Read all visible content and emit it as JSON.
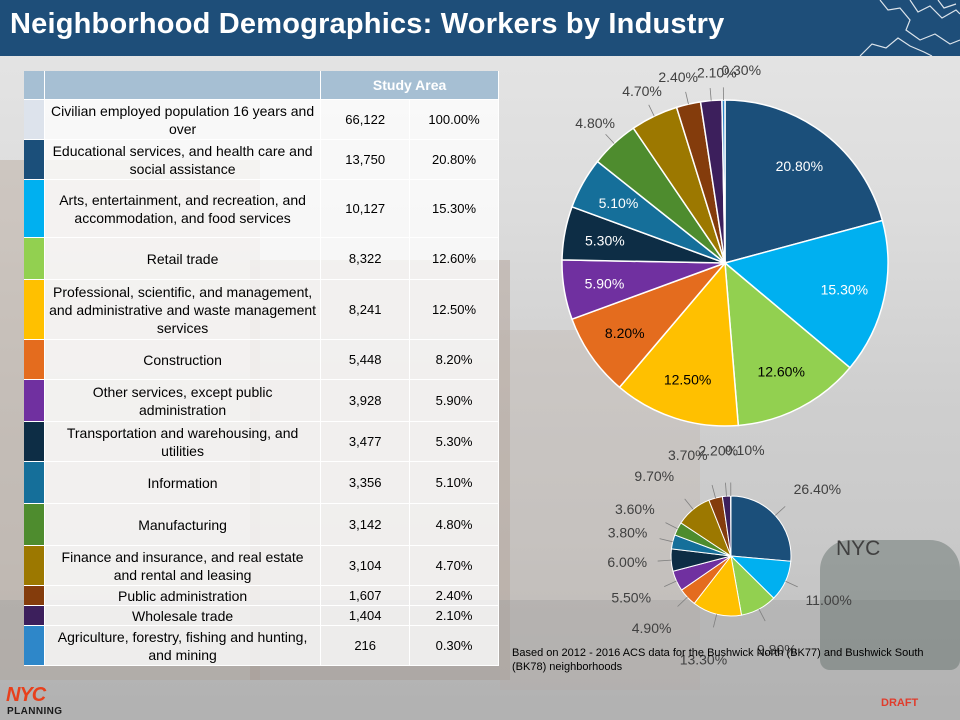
{
  "header": {
    "title": "Neighborhood Demographics:  Workers by Industry"
  },
  "table": {
    "column_header": "Study Area",
    "rows": [
      {
        "industry": "Civilian employed population 16 years and over",
        "count": "66,122",
        "pct": "100.00%",
        "color": "#dde3ec"
      },
      {
        "industry": "Educational services, and health care and social assistance",
        "count": "13,750",
        "pct": "20.80%",
        "color": "#1b4f7a"
      },
      {
        "industry": "Arts, entertainment,  and recreation, and accommodation, and food services",
        "count": "10,127",
        "pct": "15.30%",
        "color": "#00b0f0"
      },
      {
        "industry": "Retail trade",
        "count": "8,322",
        "pct": "12.60%",
        "color": "#92d050"
      },
      {
        "industry": "Professional, scientific, and management, and administrative and waste management services",
        "count": "8,241",
        "pct": "12.50%",
        "color": "#ffc000"
      },
      {
        "industry": "Construction",
        "count": "5,448",
        "pct": "8.20%",
        "color": "#e46c1e"
      },
      {
        "industry": "Other services, except public administration",
        "count": "3,928",
        "pct": "5.90%",
        "color": "#7030a0"
      },
      {
        "industry": "Transportation and warehousing, and utilities",
        "count": "3,477",
        "pct": "5.30%",
        "color": "#0d2d45"
      },
      {
        "industry": "Information",
        "count": "3,356",
        "pct": "5.10%",
        "color": "#156f9a"
      },
      {
        "industry": "Manufacturing",
        "count": "3,142",
        "pct": "4.80%",
        "color": "#4e8c2e"
      },
      {
        "industry": "Finance and insurance, and real estate and rental and leasing",
        "count": "3,104",
        "pct": "4.70%",
        "color": "#9c7800"
      },
      {
        "industry": "Public administration",
        "count": "1,607",
        "pct": "2.40%",
        "color": "#843c0c"
      },
      {
        "industry": "Wholesale trade",
        "count": "1,404",
        "pct": "2.10%",
        "color": "#3c1f5c"
      },
      {
        "industry": "Agriculture, forestry, fishing and hunting, and mining",
        "count": "216",
        "pct": "0.30%",
        "color": "#2e87c9"
      }
    ]
  },
  "chart_data": [
    {
      "type": "pie",
      "labels": [
        "20.80%",
        "15.30%",
        "12.60%",
        "12.50%",
        "8.20%",
        "5.90%",
        "5.30%",
        "5.10%",
        "4.80%",
        "4.70%",
        "2.40%",
        "2.10%",
        "0.30%"
      ],
      "values": [
        20.8,
        15.3,
        12.6,
        12.5,
        8.2,
        5.9,
        5.3,
        5.1,
        4.8,
        4.7,
        2.4,
        2.1,
        0.3
      ],
      "colors": [
        "#1b4f7a",
        "#00b0f0",
        "#92d050",
        "#ffc000",
        "#e46c1e",
        "#7030a0",
        "#0d2d45",
        "#156f9a",
        "#4e8c2e",
        "#9c7800",
        "#843c0c",
        "#3c1f5c",
        "#2e87c9"
      ]
    },
    {
      "type": "pie",
      "title": "NYC",
      "labels": [
        "26.40%",
        "11.00%",
        "9.80%",
        "13.30%",
        "4.90%",
        "5.50%",
        "6.00%",
        "3.80%",
        "3.60%",
        "9.70%",
        "3.70%",
        "2.20%",
        "0.10%"
      ],
      "values": [
        26.4,
        11.0,
        9.8,
        13.3,
        4.9,
        5.5,
        6.0,
        3.8,
        3.6,
        9.7,
        3.7,
        2.2,
        0.1
      ],
      "colors": [
        "#1b4f7a",
        "#00b0f0",
        "#92d050",
        "#ffc000",
        "#e46c1e",
        "#7030a0",
        "#0d2d45",
        "#156f9a",
        "#4e8c2e",
        "#9c7800",
        "#843c0c",
        "#3c1f5c",
        "#2e87c9"
      ]
    }
  ],
  "footer": {
    "note": "Based on 2012 - 2016 ACS data for the Bushwick North (BK77) and  Bushwick South (BK78) neighborhoods",
    "draft": "DRAFT",
    "logo_top": "NYC",
    "logo_bottom": "PLANNING"
  }
}
